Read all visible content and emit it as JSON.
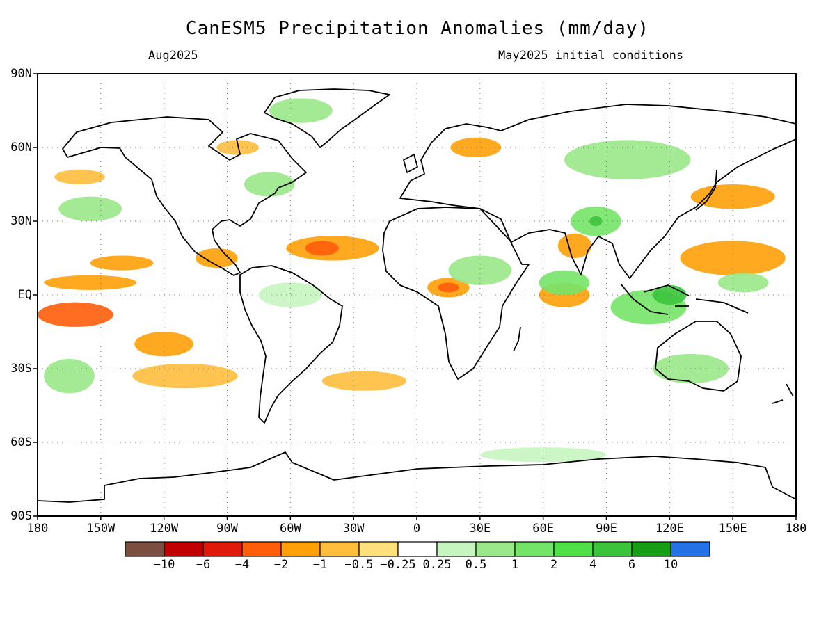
{
  "title": "CanESM5 Precipitation Anomalies (mm/day)",
  "valid_month": "Aug2025",
  "init_label": "May2025 initial conditions",
  "lat_labels": [
    "90N",
    "60N",
    "30N",
    "EQ",
    "30S",
    "60S",
    "90S"
  ],
  "lon_labels": [
    "180",
    "150W",
    "120W",
    "90W",
    "60W",
    "30W",
    "0",
    "30E",
    "60E",
    "90E",
    "120E",
    "150E",
    "180"
  ],
  "colorbar": {
    "colors": [
      "#7a4f42",
      "#c00000",
      "#e01a0a",
      "#ff5d0a",
      "#ffa008",
      "#ffbe3c",
      "#ffe07c",
      "#ffffff",
      "#c6f5c0",
      "#9ae88a",
      "#74e468",
      "#4ee046",
      "#3bc43b",
      "#169e17",
      "#2473e6"
    ],
    "labels": [
      "−10",
      "−6",
      "−4",
      "−2",
      "−1",
      "−0.5",
      "−0.25",
      "0.25",
      "0.5",
      "1",
      "2",
      "4",
      "6",
      "10"
    ]
  },
  "anomaly_regions": [
    {
      "lon": -120,
      "lat": -20,
      "rx": 14,
      "ry": 5,
      "level": "-1"
    },
    {
      "lon": -162,
      "lat": -8,
      "rx": 18,
      "ry": 5,
      "level": "-2"
    },
    {
      "lon": -155,
      "lat": 5,
      "rx": 22,
      "ry": 3,
      "level": "-1"
    },
    {
      "lon": -140,
      "lat": 13,
      "rx": 15,
      "ry": 3,
      "level": "-1"
    },
    {
      "lon": -95,
      "lat": 15,
      "rx": 10,
      "ry": 4,
      "level": "-1"
    },
    {
      "lon": -40,
      "lat": 19,
      "rx": 22,
      "ry": 5,
      "level": "-1"
    },
    {
      "lon": -45,
      "lat": 19,
      "rx": 8,
      "ry": 3,
      "level": "-2"
    },
    {
      "lon": 15,
      "lat": 3,
      "rx": 10,
      "ry": 4,
      "level": "-1"
    },
    {
      "lon": 15,
      "lat": 3,
      "rx": 5,
      "ry": 2,
      "level": "-2"
    },
    {
      "lon": 70,
      "lat": 0,
      "rx": 12,
      "ry": 5,
      "level": "-1"
    },
    {
      "lon": 150,
      "lat": 15,
      "rx": 25,
      "ry": 7,
      "level": "-1"
    },
    {
      "lon": 150,
      "lat": 40,
      "rx": 20,
      "ry": 5,
      "level": "-1"
    },
    {
      "lon": 28,
      "lat": 60,
      "rx": 12,
      "ry": 4,
      "level": "-1"
    },
    {
      "lon": -85,
      "lat": 60,
      "rx": 10,
      "ry": 3,
      "level": "-0.5"
    },
    {
      "lon": -160,
      "lat": 48,
      "rx": 12,
      "ry": 3,
      "level": "-0.5"
    },
    {
      "lon": -110,
      "lat": -33,
      "rx": 25,
      "ry": 5,
      "level": "-0.5"
    },
    {
      "lon": -25,
      "lat": -35,
      "rx": 20,
      "ry": 4,
      "level": "-0.5"
    },
    {
      "lon": 75,
      "lat": 20,
      "rx": 8,
      "ry": 5,
      "level": "-1"
    },
    {
      "lon": -165,
      "lat": -33,
      "rx": 12,
      "ry": 7,
      "level": "1"
    },
    {
      "lon": -155,
      "lat": 35,
      "rx": 15,
      "ry": 5,
      "level": "1"
    },
    {
      "lon": 85,
      "lat": 30,
      "rx": 12,
      "ry": 6,
      "level": "2"
    },
    {
      "lon": 85,
      "lat": 30,
      "rx": 3,
      "ry": 2,
      "level": "4"
    },
    {
      "lon": 70,
      "lat": 5,
      "rx": 12,
      "ry": 5,
      "level": "2"
    },
    {
      "lon": 110,
      "lat": -5,
      "rx": 18,
      "ry": 7,
      "level": "2"
    },
    {
      "lon": 120,
      "lat": 0,
      "rx": 8,
      "ry": 4,
      "level": "4"
    },
    {
      "lon": 130,
      "lat": -30,
      "rx": 18,
      "ry": 6,
      "level": "1"
    },
    {
      "lon": 30,
      "lat": 10,
      "rx": 15,
      "ry": 6,
      "level": "1"
    },
    {
      "lon": 100,
      "lat": 55,
      "rx": 30,
      "ry": 8,
      "level": "1"
    },
    {
      "lon": -55,
      "lat": 75,
      "rx": 15,
      "ry": 5,
      "level": "1"
    },
    {
      "lon": -70,
      "lat": 45,
      "rx": 12,
      "ry": 5,
      "level": "1"
    },
    {
      "lon": 60,
      "lat": -65,
      "rx": 30,
      "ry": 3,
      "level": "0.5"
    },
    {
      "lon": -60,
      "lat": 0,
      "rx": 15,
      "ry": 5,
      "level": "0.5"
    },
    {
      "lon": 155,
      "lat": 5,
      "rx": 12,
      "ry": 4,
      "level": "1"
    }
  ]
}
